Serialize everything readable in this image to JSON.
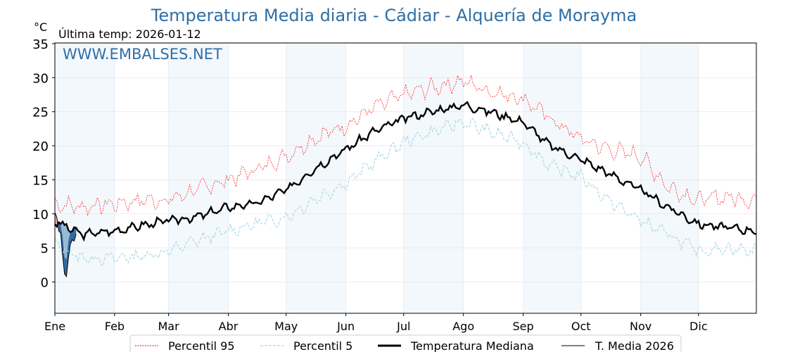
{
  "chart_data": {
    "type": "line",
    "title": "Temperatura Media diaria - Cádiar - Alquería de Morayma",
    "ylabel": "°C",
    "subtitle": "Última temp: 2026-01-12",
    "watermark": "WWW.EMBALSES.NET",
    "ylim": [
      -4.6,
      35.1
    ],
    "xlim": [
      1,
      365
    ],
    "yticks": [
      0,
      5,
      10,
      15,
      20,
      25,
      30,
      35
    ],
    "months": [
      {
        "label": "Ene",
        "day": 1
      },
      {
        "label": "Feb",
        "day": 32
      },
      {
        "label": "Mar",
        "day": 60
      },
      {
        "label": "Abr",
        "day": 91
      },
      {
        "label": "May",
        "day": 121
      },
      {
        "label": "Jun",
        "day": 152
      },
      {
        "label": "Jul",
        "day": 182
      },
      {
        "label": "Ago",
        "day": 213
      },
      {
        "label": "Sep",
        "day": 244
      },
      {
        "label": "Oct",
        "day": 274
      },
      {
        "label": "Nov",
        "day": 305
      },
      {
        "label": "Dic",
        "day": 335
      }
    ],
    "x_days": [
      1,
      15,
      32,
      46,
      60,
      74,
      91,
      105,
      121,
      135,
      152,
      166,
      182,
      196,
      213,
      227,
      244,
      258,
      274,
      288,
      305,
      319,
      335,
      349,
      365
    ],
    "series": [
      {
        "name": "Percentil 95",
        "color": "#ff0000",
        "style": "dotted",
        "values": [
          11.5,
          11,
          11.5,
          12,
          12,
          13.5,
          15,
          16.5,
          18.5,
          21,
          23,
          25.5,
          27.5,
          28.5,
          29.5,
          28,
          27,
          24,
          21,
          19.5,
          18.5,
          14,
          12,
          12.5,
          12
        ]
      },
      {
        "name": "Percentil 5",
        "color": "#add8e6",
        "style": "dashed",
        "values": [
          5.5,
          3.5,
          3.5,
          3.8,
          4.5,
          6,
          7.5,
          8.5,
          9.5,
          12,
          14.5,
          17.5,
          20.5,
          22,
          23.5,
          22,
          20.5,
          17,
          15.5,
          12,
          9,
          7,
          4.5,
          5,
          4.5
        ]
      },
      {
        "name": "Temperatura Mediana",
        "color": "#000000",
        "style": "thick",
        "values": [
          8.9,
          7,
          7.5,
          8.3,
          9,
          9.5,
          11,
          11.5,
          13.5,
          16.5,
          19.5,
          22,
          24,
          25,
          26,
          25,
          23.5,
          20,
          18,
          16,
          13.5,
          11,
          8.5,
          8,
          7.5
        ]
      },
      {
        "name": "T. Media 2026",
        "color": "#000000",
        "style": "thin",
        "days": [
          1,
          2,
          3,
          4,
          5,
          6,
          7,
          8,
          9,
          10,
          11,
          12
        ],
        "values": [
          10.2,
          9.5,
          7.5,
          7.2,
          4.0,
          1.2,
          0.8,
          3.5,
          5.5,
          6.2,
          6.0,
          7.0
        ]
      }
    ],
    "fill_below_color": "#1f5f99",
    "fill_above_color": "#f4a0a0",
    "legend_placement": "bottom-center"
  }
}
